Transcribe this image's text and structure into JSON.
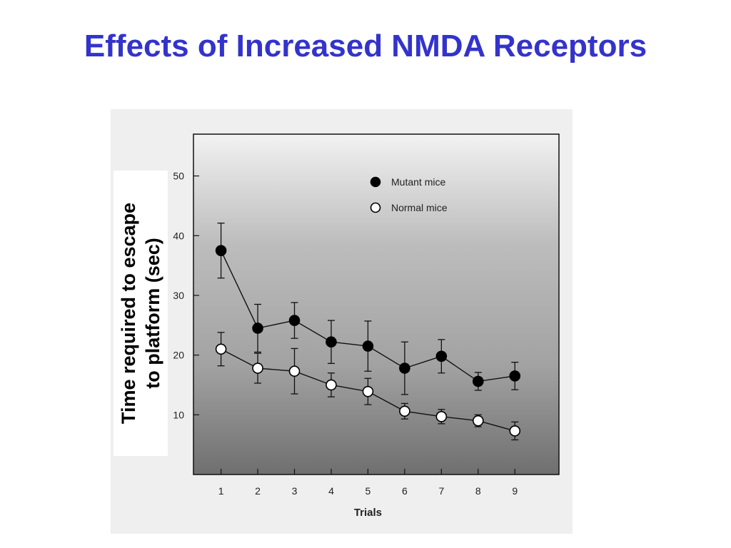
{
  "slide": {
    "title": "Effects of Increased NMDA Receptors"
  },
  "chart_data": {
    "type": "line",
    "title": "",
    "xlabel": "Trials",
    "ylabel": "Time required to escape\nto platform (sec)",
    "x": [
      1,
      2,
      3,
      4,
      5,
      6,
      7,
      8,
      9
    ],
    "xlim": [
      0.25,
      10.2
    ],
    "ylim": [
      0,
      57
    ],
    "yticks": [
      10,
      20,
      30,
      40,
      50
    ],
    "grid": false,
    "legend_position": "top-right",
    "series": [
      {
        "name": "Mutant mice",
        "marker": "filled-circle",
        "color": "#000000",
        "values": [
          37.5,
          24.5,
          25.8,
          22.2,
          21.5,
          17.8,
          19.8,
          15.6,
          16.5
        ],
        "errors": [
          4.6,
          4.0,
          3.0,
          3.6,
          4.2,
          4.4,
          2.8,
          1.5,
          2.3
        ]
      },
      {
        "name": "Normal mice",
        "marker": "open-circle",
        "color": "#000000",
        "values": [
          21.0,
          17.8,
          17.3,
          15.0,
          13.9,
          10.6,
          9.7,
          9.0,
          7.3
        ],
        "errors": [
          2.8,
          2.5,
          3.8,
          2.0,
          2.2,
          1.3,
          1.2,
          1.0,
          1.5
        ]
      }
    ]
  }
}
